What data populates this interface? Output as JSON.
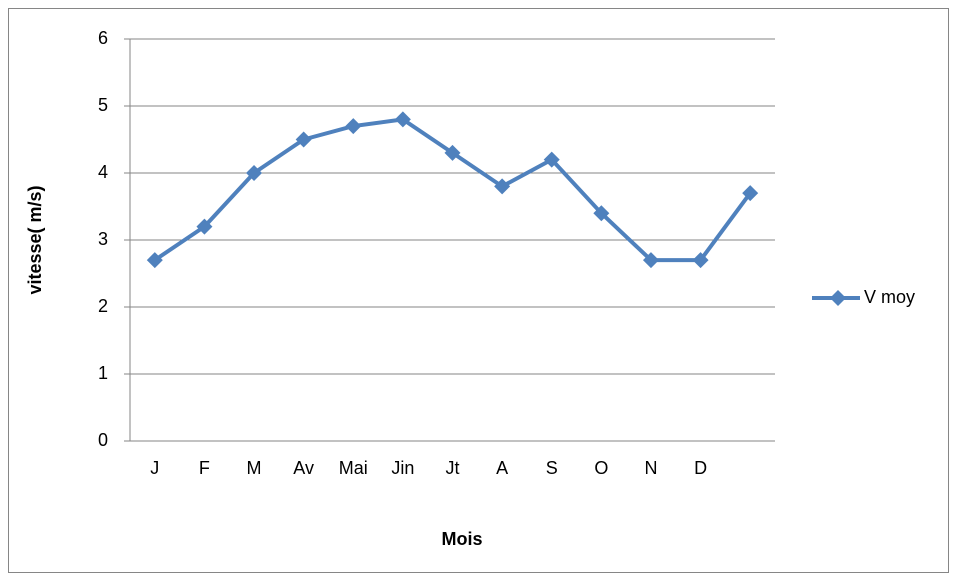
{
  "chart_data": {
    "type": "line",
    "x_label": "Mois",
    "y_label": "vitesse( m/s)",
    "categories": [
      "J",
      "F",
      "M",
      "Av",
      "Mai",
      "Jin",
      "Jt",
      "A",
      "S",
      "O",
      "N",
      "D",
      null
    ],
    "series": [
      {
        "name": "V moy",
        "color": "#4f81bd",
        "values": [
          2.7,
          3.2,
          4.0,
          4.5,
          4.7,
          4.8,
          4.3,
          3.8,
          4.2,
          3.4,
          2.7,
          2.7,
          3.7
        ]
      }
    ],
    "ylim": [
      0,
      6
    ],
    "yticks": [
      0,
      1,
      2,
      3,
      4,
      5,
      6
    ],
    "grid": true,
    "legend": "right"
  }
}
